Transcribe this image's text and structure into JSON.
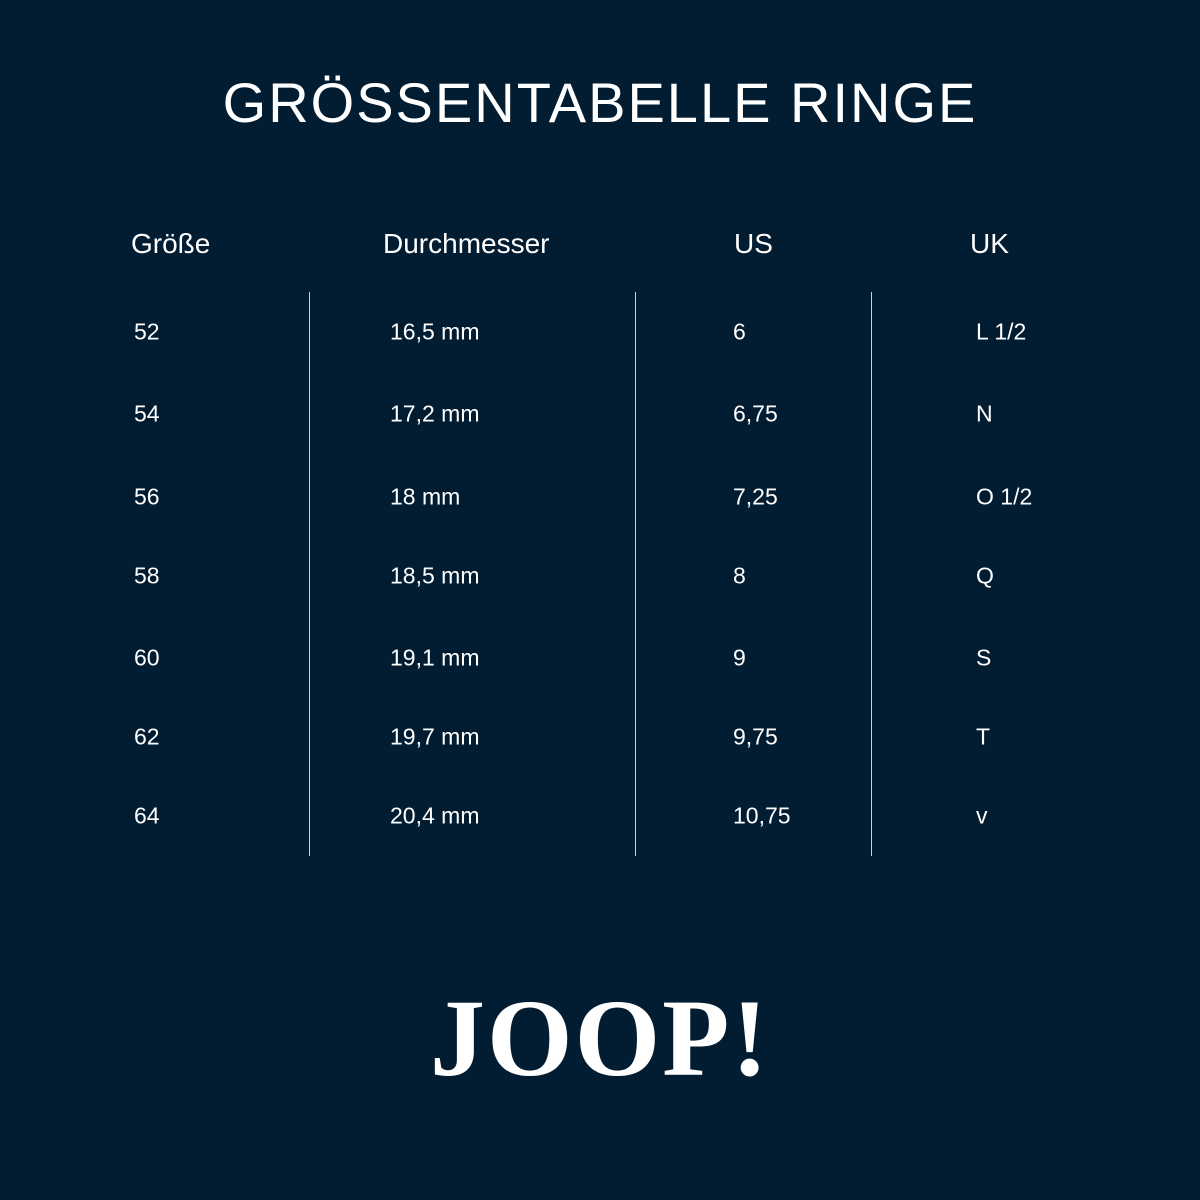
{
  "title": "GRÖSSENTABELLE RINGE",
  "table": {
    "headers": [
      "Größe",
      "Durchmesser",
      "US",
      "UK"
    ],
    "rows": [
      [
        "52",
        "16,5 mm",
        "6",
        "L 1/2"
      ],
      [
        "54",
        "17,2 mm",
        "6,75",
        "N"
      ],
      [
        "56",
        "18 mm",
        "7,25",
        "O 1/2"
      ],
      [
        "58",
        "18,5 mm",
        "8",
        "Q"
      ],
      [
        "60",
        "19,1 mm",
        "9",
        "S"
      ],
      [
        "62",
        "19,7 mm",
        "9,75",
        "T"
      ],
      [
        "64",
        "20,4 mm",
        "10,75",
        "v"
      ]
    ]
  },
  "logo": "JOOP!",
  "colors": {
    "background": "#021c32",
    "text": "#ffffff"
  }
}
